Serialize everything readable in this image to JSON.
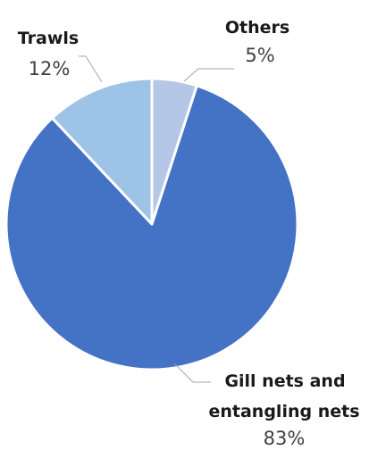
{
  "chart_data": {
    "type": "pie",
    "title": "",
    "slices": [
      {
        "name": "Others",
        "value": 5,
        "value_label": "5%",
        "color": "#b4c7e7"
      },
      {
        "name": "Gill nets and entangling nets",
        "value": 83,
        "value_label": "83%",
        "color": "#4472c4"
      },
      {
        "name": "Trawls",
        "value": 12,
        "value_label": "12%",
        "color": "#9dc3e6"
      }
    ],
    "start_angle_deg": 0,
    "direction": "clockwise",
    "legend": "none",
    "data_labels": "outside with leader lines"
  },
  "labels": {
    "others_name": "Others",
    "others_value": "5%",
    "gill_name_line1": "Gill nets and",
    "gill_name_line2": "entangling nets",
    "gill_value": "83%",
    "trawls_name": "Trawls",
    "trawls_value": "12%"
  }
}
